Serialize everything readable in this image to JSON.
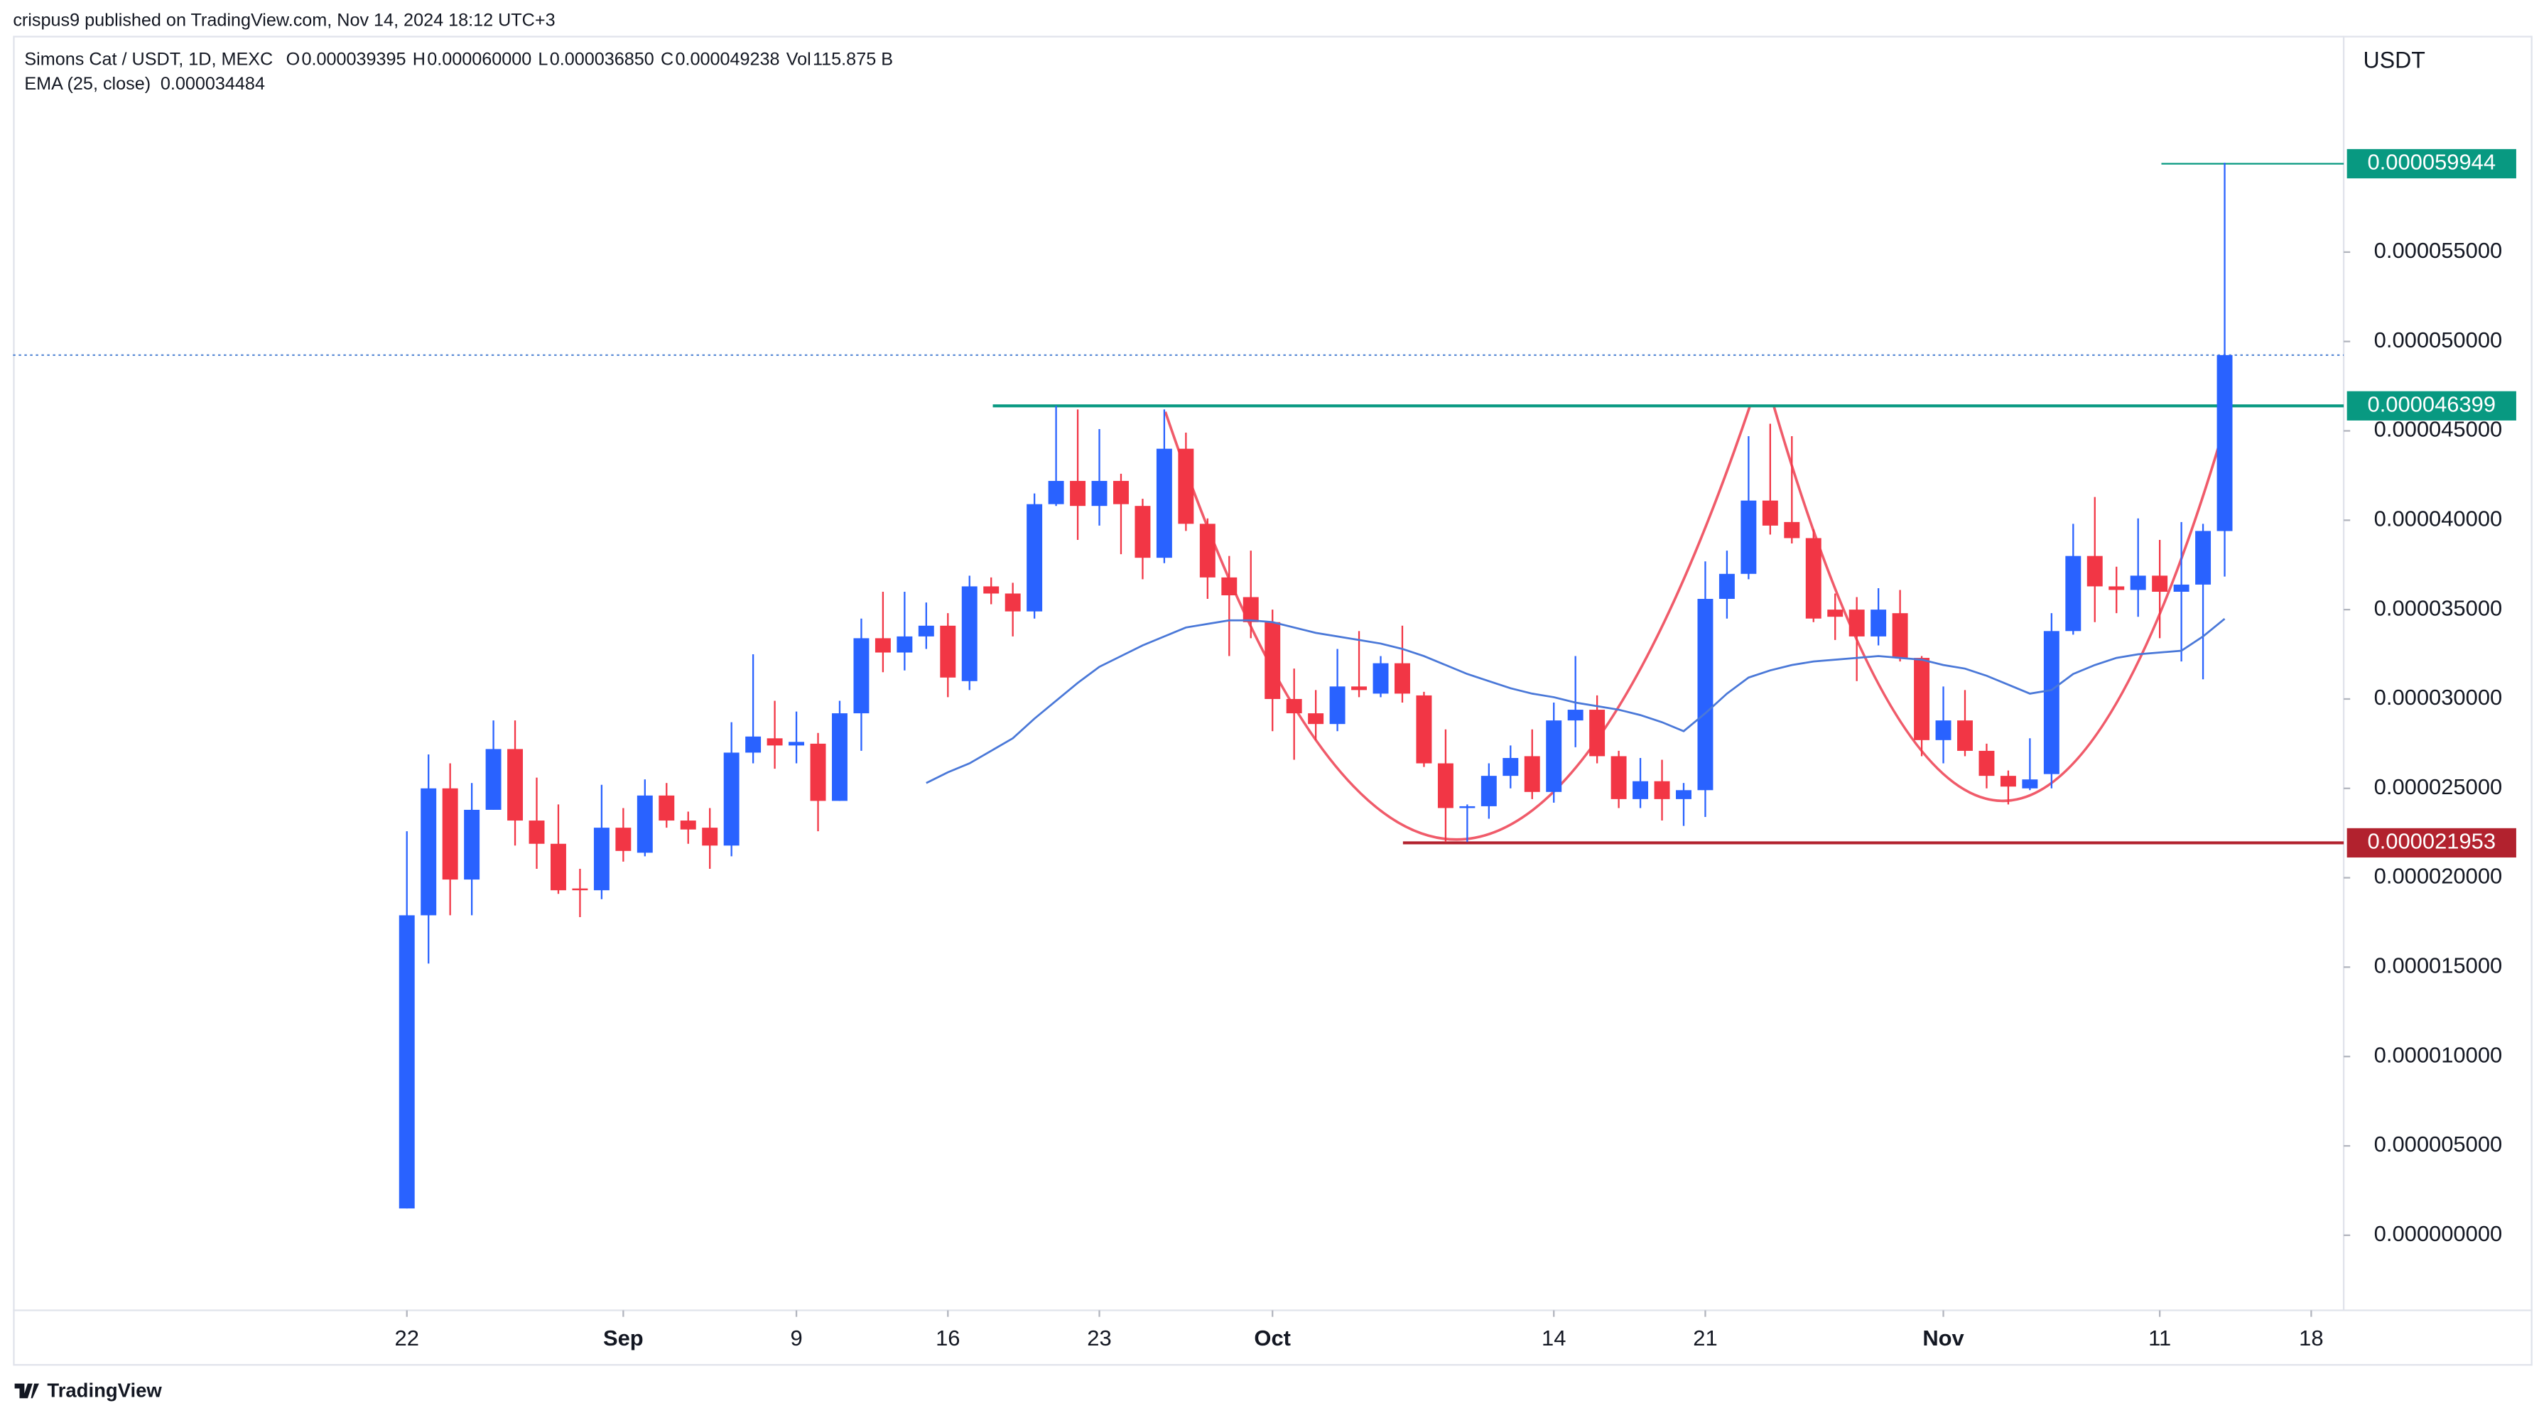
{
  "chart_data": {
    "type": "candlestick",
    "publisher": "crispus9 published on TradingView.com, Nov 14, 2024 18:12 UTC+3",
    "title": "Simons Cat / USDT, 1D, MEXC",
    "legend": [
      {
        "key": "O",
        "value": 3.9395e-05,
        "label": "0.000039395"
      },
      {
        "key": "H",
        "value": 6e-05,
        "label": "0.000060000"
      },
      {
        "key": "L",
        "value": 3.685e-05,
        "label": "0.000036850"
      },
      {
        "key": "C",
        "value": 4.9238e-05,
        "label": "0.000049238"
      }
    ],
    "volume": {
      "key": "Vol",
      "label": "115.875 B"
    },
    "currency": "USDT",
    "brand": "TradingView",
    "up_color": "#2962ff",
    "down_color": "#f23645",
    "open": [
      1.5e-06,
      1.79e-05,
      2.5e-05,
      1.99e-05,
      2.38e-05,
      2.72e-05,
      2.32e-05,
      2.19e-05,
      1.94e-05,
      1.93e-05,
      2.28e-05,
      2.14e-05,
      2.46e-05,
      2.32e-05,
      2.28e-05,
      2.18e-05,
      2.7e-05,
      2.78e-05,
      2.74e-05,
      2.75e-05,
      2.43e-05,
      2.92e-05,
      3.34e-05,
      3.26e-05,
      3.35e-05,
      3.41e-05,
      3.1e-05,
      3.63e-05,
      3.59e-05,
      3.49e-05,
      4.09e-05,
      4.22e-05,
      4.08e-05,
      4.22e-05,
      4.08e-05,
      3.79e-05,
      4.4e-05,
      3.98e-05,
      3.68e-05,
      3.57e-05,
      3.43e-05,
      3e-05,
      2.92e-05,
      2.86e-05,
      3.07e-05,
      3.03e-05,
      3.2e-05,
      3.02e-05,
      2.64e-05,
      2.39e-05,
      2.4e-05,
      2.57e-05,
      2.68e-05,
      2.48e-05,
      2.88e-05,
      2.94e-05,
      2.68e-05,
      2.44e-05,
      2.54e-05,
      2.44e-05,
      2.49e-05,
      3.56e-05,
      3.7e-05,
      4.11e-05,
      3.99e-05,
      3.9e-05,
      3.5e-05,
      3.5e-05,
      3.35e-05,
      3.48e-05,
      3.23e-05,
      2.77e-05,
      2.88e-05,
      2.71e-05,
      2.57e-05,
      2.5e-05,
      2.58e-05,
      3.38e-05,
      3.8e-05,
      3.63e-05,
      3.61e-05,
      3.69e-05,
      3.6e-05,
      3.64e-05,
      3.9395e-05
    ],
    "high": [
      2.26e-05,
      2.69e-05,
      2.64e-05,
      2.53e-05,
      2.88e-05,
      2.88e-05,
      2.56e-05,
      2.41e-05,
      2.05e-05,
      2.52e-05,
      2.39e-05,
      2.55e-05,
      2.53e-05,
      2.37e-05,
      2.39e-05,
      2.87e-05,
      3.25e-05,
      2.99e-05,
      2.93e-05,
      2.81e-05,
      2.99e-05,
      3.45e-05,
      3.6e-05,
      3.6e-05,
      3.54e-05,
      3.48e-05,
      3.69e-05,
      3.68e-05,
      3.65e-05,
      4.15e-05,
      4.64e-05,
      4.62e-05,
      4.51e-05,
      4.26e-05,
      4.12e-05,
      4.62e-05,
      4.49e-05,
      4.01e-05,
      3.8e-05,
      3.83e-05,
      3.5e-05,
      3.17e-05,
      3.05e-05,
      3.28e-05,
      3.38e-05,
      3.24e-05,
      3.41e-05,
      3.04e-05,
      2.83e-05,
      2.41e-05,
      2.64e-05,
      2.74e-05,
      2.83e-05,
      2.98e-05,
      3.24e-05,
      3.02e-05,
      2.71e-05,
      2.67e-05,
      2.66e-05,
      2.53e-05,
      3.77e-05,
      3.83e-05,
      4.47e-05,
      4.54e-05,
      4.47e-05,
      3.95e-05,
      3.59e-05,
      3.57e-05,
      3.62e-05,
      3.61e-05,
      3.24e-05,
      3.07e-05,
      3.05e-05,
      2.75e-05,
      2.6e-05,
      2.78e-05,
      3.48e-05,
      3.98e-05,
      4.13e-05,
      3.74e-05,
      4.01e-05,
      3.89e-05,
      3.99e-05,
      3.98e-05,
      6e-05
    ],
    "low": [
      1.5e-06,
      1.52e-05,
      1.79e-05,
      1.79e-05,
      2.38e-05,
      2.18e-05,
      2.05e-05,
      1.91e-05,
      1.78e-05,
      1.88e-05,
      2.09e-05,
      2.12e-05,
      2.28e-05,
      2.19e-05,
      2.05e-05,
      2.12e-05,
      2.64e-05,
      2.61e-05,
      2.64e-05,
      2.26e-05,
      2.43e-05,
      2.71e-05,
      3.15e-05,
      3.16e-05,
      3.28e-05,
      3.01e-05,
      3.05e-05,
      3.53e-05,
      3.35e-05,
      3.45e-05,
      4.08e-05,
      3.89e-05,
      3.97e-05,
      3.81e-05,
      3.67e-05,
      3.76e-05,
      3.94e-05,
      3.56e-05,
      3.24e-05,
      3.34e-05,
      2.82e-05,
      2.66e-05,
      2.77e-05,
      2.82e-05,
      3.01e-05,
      3.01e-05,
      2.98e-05,
      2.62e-05,
      2.2e-05,
      2.2e-05,
      2.33e-05,
      2.5e-05,
      2.44e-05,
      2.42e-05,
      2.73e-05,
      2.64e-05,
      2.39e-05,
      2.39e-05,
      2.32e-05,
      2.29e-05,
      2.34e-05,
      3.45e-05,
      3.67e-05,
      3.92e-05,
      3.87e-05,
      3.43e-05,
      3.33e-05,
      3.1e-05,
      3.3e-05,
      3.21e-05,
      2.68e-05,
      2.64e-05,
      2.68e-05,
      2.5e-05,
      2.41e-05,
      2.49e-05,
      2.5e-05,
      3.36e-05,
      3.43e-05,
      3.48e-05,
      3.46e-05,
      3.34e-05,
      3.21e-05,
      3.11e-05,
      3.685e-05
    ],
    "close": [
      1.79e-05,
      2.5e-05,
      1.99e-05,
      2.38e-05,
      2.72e-05,
      2.32e-05,
      2.19e-05,
      1.93e-05,
      1.93e-05,
      2.28e-05,
      2.15e-05,
      2.46e-05,
      2.32e-05,
      2.27e-05,
      2.18e-05,
      2.7e-05,
      2.79e-05,
      2.74e-05,
      2.76e-05,
      2.43e-05,
      2.92e-05,
      3.34e-05,
      3.26e-05,
      3.35e-05,
      3.41e-05,
      3.12e-05,
      3.63e-05,
      3.59e-05,
      3.49e-05,
      4.09e-05,
      4.22e-05,
      4.08e-05,
      4.22e-05,
      4.09e-05,
      3.79e-05,
      4.4e-05,
      3.98e-05,
      3.68e-05,
      3.58e-05,
      3.43e-05,
      3e-05,
      2.92e-05,
      2.86e-05,
      3.07e-05,
      3.05e-05,
      3.2e-05,
      3.03e-05,
      2.64e-05,
      2.39e-05,
      2.4e-05,
      2.57e-05,
      2.67e-05,
      2.48e-05,
      2.88e-05,
      2.94e-05,
      2.68e-05,
      2.44e-05,
      2.54e-05,
      2.44e-05,
      2.49e-05,
      3.56e-05,
      3.7e-05,
      4.11e-05,
      3.97e-05,
      3.9e-05,
      3.45e-05,
      3.46e-05,
      3.35e-05,
      3.5e-05,
      3.23e-05,
      2.77e-05,
      2.88e-05,
      2.71e-05,
      2.57e-05,
      2.51e-05,
      2.55e-05,
      3.38e-05,
      3.8e-05,
      3.63e-05,
      3.61e-05,
      3.69e-05,
      3.6e-05,
      3.64e-05,
      3.94e-05,
      4.9238e-05
    ],
    "ema": {
      "name": "EMA (25, close)",
      "color": "#4a78d8",
      "last": {
        "value": 3.4484e-05,
        "label": "0.000034484"
      },
      "values": [
        null,
        null,
        null,
        null,
        null,
        null,
        null,
        null,
        null,
        null,
        null,
        null,
        null,
        null,
        null,
        null,
        null,
        null,
        null,
        null,
        null,
        null,
        null,
        null,
        2.53e-05,
        2.59e-05,
        2.64e-05,
        2.71e-05,
        2.78e-05,
        2.89e-05,
        2.99e-05,
        3.09e-05,
        3.18e-05,
        3.24e-05,
        3.3e-05,
        3.35e-05,
        3.4e-05,
        3.42e-05,
        3.44e-05,
        3.44e-05,
        3.43e-05,
        3.4e-05,
        3.37e-05,
        3.35e-05,
        3.33e-05,
        3.31e-05,
        3.28e-05,
        3.24e-05,
        3.19e-05,
        3.14e-05,
        3.1e-05,
        3.06e-05,
        3.03e-05,
        3.01e-05,
        2.98e-05,
        2.96e-05,
        2.94e-05,
        2.91e-05,
        2.87e-05,
        2.82e-05,
        2.92e-05,
        3.03e-05,
        3.12e-05,
        3.16e-05,
        3.19e-05,
        3.21e-05,
        3.22e-05,
        3.23e-05,
        3.24e-05,
        3.23e-05,
        3.22e-05,
        3.19e-05,
        3.17e-05,
        3.13e-05,
        3.08e-05,
        3.03e-05,
        3.05e-05,
        3.14e-05,
        3.19e-05,
        3.23e-05,
        3.25e-05,
        3.26e-05,
        3.27e-05,
        3.35e-05,
        3.4484e-05
      ]
    },
    "price_lines": [
      {
        "value": 5.9944e-05,
        "label": "0.000059944",
        "color": "#089981"
      },
      {
        "value": 4.6399e-05,
        "label": "0.000046399",
        "color": "#089981"
      },
      {
        "value": 2.1953e-05,
        "label": "0.000021953",
        "color": "#b2222e"
      }
    ],
    "last_price": {
      "value": 4.9238e-05,
      "color": "#5b8bd6"
    },
    "xlim": [
      -18.2,
      89.5
    ],
    "xticks": [
      {
        "value": 0,
        "label": "22"
      },
      {
        "value": 10,
        "label": "Sep"
      },
      {
        "value": 18,
        "label": "9"
      },
      {
        "value": 25,
        "label": "16"
      },
      {
        "value": 32,
        "label": "23"
      },
      {
        "value": 40,
        "label": "Oct"
      },
      {
        "value": 53,
        "label": "14"
      },
      {
        "value": 60,
        "label": "21"
      },
      {
        "value": 71,
        "label": "Nov"
      },
      {
        "value": 81,
        "label": "11"
      },
      {
        "value": 88,
        "label": "18"
      }
    ],
    "ylim": [
      -4.2e-06,
      6.71e-05
    ],
    "yticks": [
      {
        "value": 0,
        "label": "0.000000000"
      },
      {
        "value": 5e-06,
        "label": "0.000005000"
      },
      {
        "value": 1e-05,
        "label": "0.000010000"
      },
      {
        "value": 1.5e-05,
        "label": "0.000015000"
      },
      {
        "value": 2e-05,
        "label": "0.000020000"
      },
      {
        "value": 2.5e-05,
        "label": "0.000025000"
      },
      {
        "value": 3e-05,
        "label": "0.000030000"
      },
      {
        "value": 3.5e-05,
        "label": "0.000035000"
      },
      {
        "value": 4e-05,
        "label": "0.000040000"
      },
      {
        "value": 4.5e-05,
        "label": "0.000045000"
      },
      {
        "value": 5e-05,
        "label": "0.000050000"
      },
      {
        "value": 5.5e-05,
        "label": "0.000055000"
      }
    ],
    "grid": false
  }
}
